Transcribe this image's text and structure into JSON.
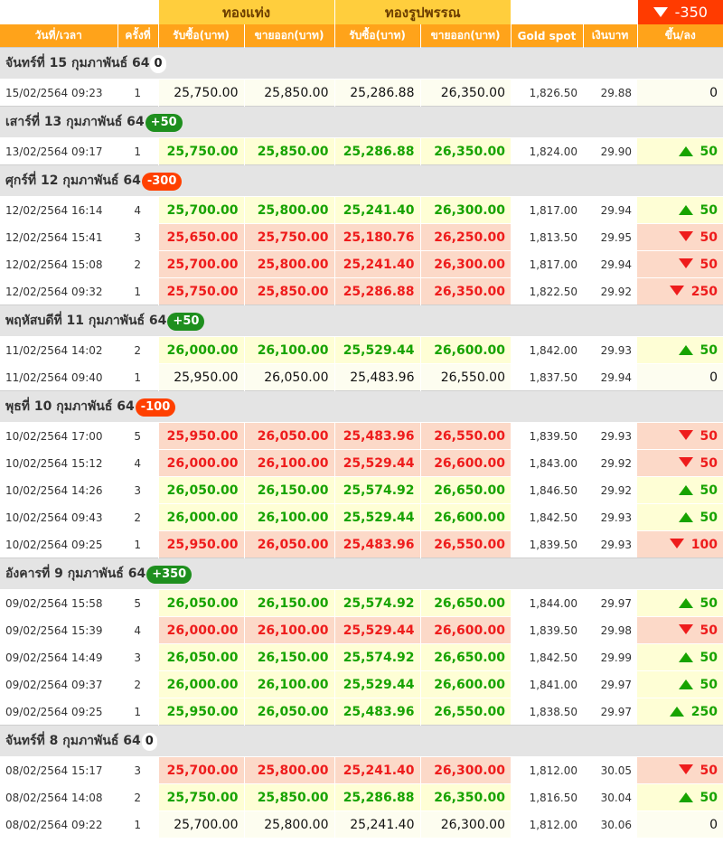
{
  "summary_change": "-350",
  "summary_direction": "down",
  "groups": {
    "bar": "ทองแท่ง",
    "ornament": "ทองรูปพรรณ"
  },
  "columns": {
    "datetime": "วันที่/เวลา",
    "count": "ครั้งที่",
    "bar_buy": "รับซื้อ(บาท)",
    "bar_sell": "ขายออก(บาท)",
    "orn_buy": "รับซื้อ(บาท)",
    "orn_sell": "ขายออก(บาท)",
    "spot": "Gold spot",
    "thb": "เงินบาท",
    "change": "ขึ้น/ลง"
  },
  "days": [
    {
      "label": "จันทร์ที่ 15 กุมภาพันธ์ 64",
      "change": "0",
      "dir": "zero",
      "rows": [
        {
          "datetime": "15/02/2564 09:23",
          "count": "1",
          "bar_buy": "25,750.00",
          "bar_sell": "25,850.00",
          "orn_buy": "25,286.88",
          "orn_sell": "26,350.00",
          "spot": "1,826.50",
          "thb": "29.88",
          "change": "0",
          "dir": "zero"
        }
      ]
    },
    {
      "label": "เสาร์ที่ 13 กุมภาพันธ์ 64",
      "change": "+50",
      "dir": "up",
      "rows": [
        {
          "datetime": "13/02/2564 09:17",
          "count": "1",
          "bar_buy": "25,750.00",
          "bar_sell": "25,850.00",
          "orn_buy": "25,286.88",
          "orn_sell": "26,350.00",
          "spot": "1,824.00",
          "thb": "29.90",
          "change": "50",
          "dir": "up"
        }
      ]
    },
    {
      "label": "ศุกร์ที่ 12 กุมภาพันธ์ 64",
      "change": "-300",
      "dir": "down",
      "rows": [
        {
          "datetime": "12/02/2564 16:14",
          "count": "4",
          "bar_buy": "25,700.00",
          "bar_sell": "25,800.00",
          "orn_buy": "25,241.40",
          "orn_sell": "26,300.00",
          "spot": "1,817.00",
          "thb": "29.94",
          "change": "50",
          "dir": "up"
        },
        {
          "datetime": "12/02/2564 15:41",
          "count": "3",
          "bar_buy": "25,650.00",
          "bar_sell": "25,750.00",
          "orn_buy": "25,180.76",
          "orn_sell": "26,250.00",
          "spot": "1,813.50",
          "thb": "29.95",
          "change": "50",
          "dir": "down"
        },
        {
          "datetime": "12/02/2564 15:08",
          "count": "2",
          "bar_buy": "25,700.00",
          "bar_sell": "25,800.00",
          "orn_buy": "25,241.40",
          "orn_sell": "26,300.00",
          "spot": "1,817.00",
          "thb": "29.94",
          "change": "50",
          "dir": "down"
        },
        {
          "datetime": "12/02/2564 09:32",
          "count": "1",
          "bar_buy": "25,750.00",
          "bar_sell": "25,850.00",
          "orn_buy": "25,286.88",
          "orn_sell": "26,350.00",
          "spot": "1,822.50",
          "thb": "29.92",
          "change": "250",
          "dir": "down"
        }
      ]
    },
    {
      "label": "พฤหัสบดีที่ 11 กุมภาพันธ์ 64",
      "change": "+50",
      "dir": "up",
      "rows": [
        {
          "datetime": "11/02/2564 14:02",
          "count": "2",
          "bar_buy": "26,000.00",
          "bar_sell": "26,100.00",
          "orn_buy": "25,529.44",
          "orn_sell": "26,600.00",
          "spot": "1,842.00",
          "thb": "29.93",
          "change": "50",
          "dir": "up"
        },
        {
          "datetime": "11/02/2564 09:40",
          "count": "1",
          "bar_buy": "25,950.00",
          "bar_sell": "26,050.00",
          "orn_buy": "25,483.96",
          "orn_sell": "26,550.00",
          "spot": "1,837.50",
          "thb": "29.94",
          "change": "0",
          "dir": "zero"
        }
      ]
    },
    {
      "label": "พุธที่ 10 กุมภาพันธ์ 64",
      "change": "-100",
      "dir": "down",
      "rows": [
        {
          "datetime": "10/02/2564 17:00",
          "count": "5",
          "bar_buy": "25,950.00",
          "bar_sell": "26,050.00",
          "orn_buy": "25,483.96",
          "orn_sell": "26,550.00",
          "spot": "1,839.50",
          "thb": "29.93",
          "change": "50",
          "dir": "down"
        },
        {
          "datetime": "10/02/2564 15:12",
          "count": "4",
          "bar_buy": "26,000.00",
          "bar_sell": "26,100.00",
          "orn_buy": "25,529.44",
          "orn_sell": "26,600.00",
          "spot": "1,843.00",
          "thb": "29.92",
          "change": "50",
          "dir": "down"
        },
        {
          "datetime": "10/02/2564 14:26",
          "count": "3",
          "bar_buy": "26,050.00",
          "bar_sell": "26,150.00",
          "orn_buy": "25,574.92",
          "orn_sell": "26,650.00",
          "spot": "1,846.50",
          "thb": "29.92",
          "change": "50",
          "dir": "up"
        },
        {
          "datetime": "10/02/2564 09:43",
          "count": "2",
          "bar_buy": "26,000.00",
          "bar_sell": "26,100.00",
          "orn_buy": "25,529.44",
          "orn_sell": "26,600.00",
          "spot": "1,842.50",
          "thb": "29.93",
          "change": "50",
          "dir": "up"
        },
        {
          "datetime": "10/02/2564 09:25",
          "count": "1",
          "bar_buy": "25,950.00",
          "bar_sell": "26,050.00",
          "orn_buy": "25,483.96",
          "orn_sell": "26,550.00",
          "spot": "1,839.50",
          "thb": "29.93",
          "change": "100",
          "dir": "down"
        }
      ]
    },
    {
      "label": "อังคารที่ 9 กุมภาพันธ์ 64",
      "change": "+350",
      "dir": "up",
      "rows": [
        {
          "datetime": "09/02/2564 15:58",
          "count": "5",
          "bar_buy": "26,050.00",
          "bar_sell": "26,150.00",
          "orn_buy": "25,574.92",
          "orn_sell": "26,650.00",
          "spot": "1,844.00",
          "thb": "29.97",
          "change": "50",
          "dir": "up"
        },
        {
          "datetime": "09/02/2564 15:39",
          "count": "4",
          "bar_buy": "26,000.00",
          "bar_sell": "26,100.00",
          "orn_buy": "25,529.44",
          "orn_sell": "26,600.00",
          "spot": "1,839.50",
          "thb": "29.98",
          "change": "50",
          "dir": "down"
        },
        {
          "datetime": "09/02/2564 14:49",
          "count": "3",
          "bar_buy": "26,050.00",
          "bar_sell": "26,150.00",
          "orn_buy": "25,574.92",
          "orn_sell": "26,650.00",
          "spot": "1,842.50",
          "thb": "29.99",
          "change": "50",
          "dir": "up"
        },
        {
          "datetime": "09/02/2564 09:37",
          "count": "2",
          "bar_buy": "26,000.00",
          "bar_sell": "26,100.00",
          "orn_buy": "25,529.44",
          "orn_sell": "26,600.00",
          "spot": "1,841.00",
          "thb": "29.97",
          "change": "50",
          "dir": "up"
        },
        {
          "datetime": "09/02/2564 09:25",
          "count": "1",
          "bar_buy": "25,950.00",
          "bar_sell": "26,050.00",
          "orn_buy": "25,483.96",
          "orn_sell": "26,550.00",
          "spot": "1,838.50",
          "thb": "29.97",
          "change": "250",
          "dir": "up"
        }
      ]
    },
    {
      "label": "จันทร์ที่ 8 กุมภาพันธ์ 64",
      "change": "0",
      "dir": "zero",
      "rows": [
        {
          "datetime": "08/02/2564 15:17",
          "count": "3",
          "bar_buy": "25,700.00",
          "bar_sell": "25,800.00",
          "orn_buy": "25,241.40",
          "orn_sell": "26,300.00",
          "spot": "1,812.00",
          "thb": "30.05",
          "change": "50",
          "dir": "down"
        },
        {
          "datetime": "08/02/2564 14:08",
          "count": "2",
          "bar_buy": "25,750.00",
          "bar_sell": "25,850.00",
          "orn_buy": "25,286.88",
          "orn_sell": "26,350.00",
          "spot": "1,816.50",
          "thb": "30.04",
          "change": "50",
          "dir": "up"
        },
        {
          "datetime": "08/02/2564 09:22",
          "count": "1",
          "bar_buy": "25,700.00",
          "bar_sell": "25,800.00",
          "orn_buy": "25,241.40",
          "orn_sell": "26,300.00",
          "spot": "1,812.00",
          "thb": "30.06",
          "change": "0",
          "dir": "zero"
        }
      ]
    }
  ]
}
